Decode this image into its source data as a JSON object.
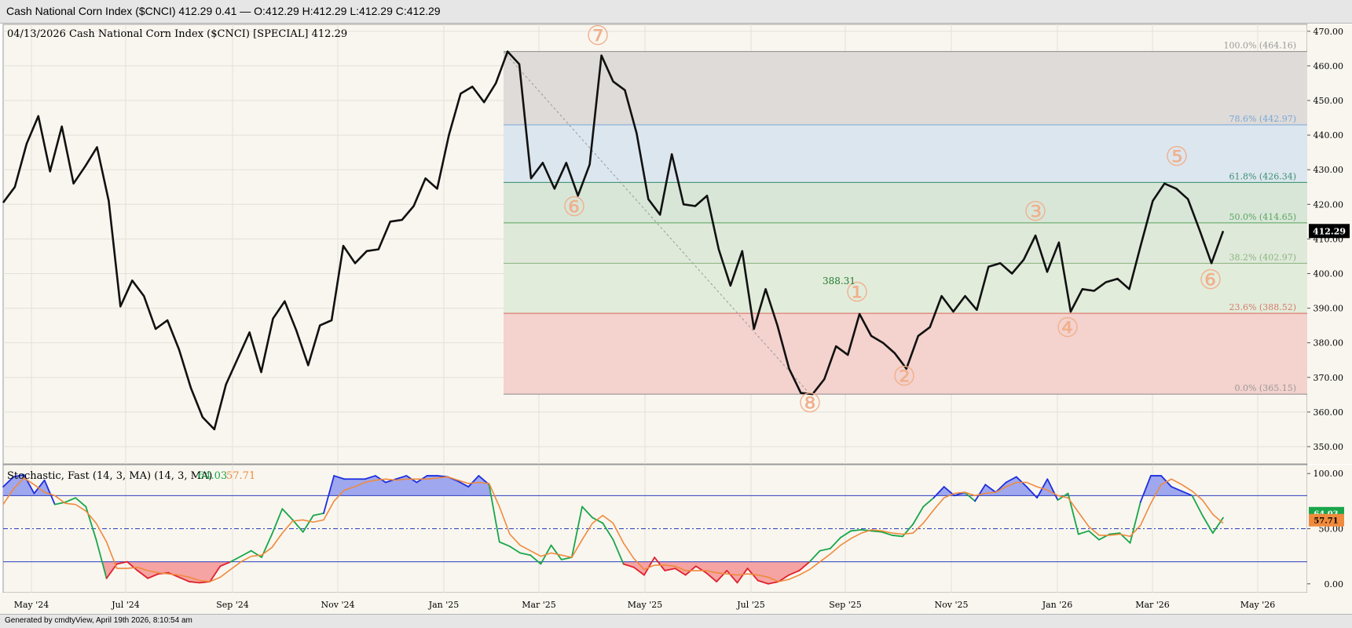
{
  "header": {
    "title": "Cash National Corn Index ($CNCI) 412.29 0.41 — O:412.29 H:412.29 L:412.29 C:412.29"
  },
  "footer": {
    "text": "Generated by cmdtyView, April 19th 2026, 8:10:54 am"
  },
  "colors": {
    "background": "#f9f6ef",
    "price_line": "#111111",
    "fib_top": "#dedbd8",
    "fib_786": "#dce6ee",
    "fib_618": "#d8e6d8",
    "fib_500": "#dfe9da",
    "fib_382": "#e2ecdb",
    "fib_236": "#f4d2cd",
    "wave_label": "#f0b08e",
    "stoch_k": "#19a64a",
    "stoch_d": "#f08a3c",
    "overbought_fill": "#9fa7ee",
    "oversold_fill": "#f5a3a3"
  },
  "chart_data": [
    {
      "type": "line",
      "title": "04/13/2026 Cash National Corn Index ($CNCI) [SPECIAL] 412.29",
      "ylim": [
        345,
        472
      ],
      "yticks": [
        "470.00",
        "460.00",
        "450.00",
        "440.00",
        "430.00",
        "420.00",
        "410.00",
        "400.00",
        "390.00",
        "380.00",
        "370.00",
        "360.00",
        "350.00"
      ],
      "xticks": [
        "May '24",
        "Jul '24",
        "Sep '24",
        "Nov '24",
        "Jan '25",
        "Mar '25",
        "May '25",
        "Jul '25",
        "Sep '25",
        "Nov '25",
        "Jan '26",
        "Mar '26",
        "May '26"
      ],
      "last_value_label": "412.29",
      "series": [
        {
          "values": [
            420.5,
            425,
            437.5,
            445.5,
            429.5,
            442.5,
            426,
            431,
            436.5,
            421,
            390.5,
            398,
            393.5,
            384,
            386.5,
            378,
            367,
            358.5,
            355,
            368,
            375.5,
            383,
            371.5,
            387,
            392,
            383.5,
            373.5,
            385,
            386.5,
            408,
            403,
            406.5,
            407,
            415,
            415.5,
            419.5,
            427.5,
            424.5,
            440,
            452,
            454,
            449.5,
            455,
            464.16,
            460.5,
            427.5,
            432,
            424.5,
            432,
            422.5,
            431.5,
            463,
            455.5,
            453,
            440.5,
            421.5,
            417,
            434.5,
            420,
            419.5,
            422.5,
            407,
            396.5,
            406.5,
            384,
            395.5,
            385,
            372.5,
            365.5,
            365.15,
            369.5,
            379,
            376.5,
            388.31,
            382,
            380,
            377,
            372.5,
            382,
            384.5,
            393.5,
            389,
            393.5,
            389.5,
            402,
            403,
            400,
            404,
            411,
            400.5,
            409,
            389,
            395.5,
            395,
            397.5,
            398.5,
            395.5,
            408.5,
            421,
            426,
            424.5,
            421.5,
            412.5,
            403,
            412.29
          ]
        }
      ],
      "fibonacci": [
        {
          "label": "100.0% (464.16)",
          "value": 464.16
        },
        {
          "label": "78.6% (442.97)",
          "value": 442.97
        },
        {
          "label": "61.8% (426.34)",
          "value": 426.34
        },
        {
          "label": "50.0% (414.65)",
          "value": 414.65
        },
        {
          "label": "38.2% (402.97)",
          "value": 402.97
        },
        {
          "label": "23.6% (388.52)",
          "value": 388.52
        },
        {
          "label": "0.0% (365.15)",
          "value": 365.15
        }
      ],
      "annotations": [
        {
          "text": "388.31",
          "value": 388.31
        },
        {
          "text": "⑦"
        },
        {
          "text": "⑥"
        },
        {
          "text": "⑧"
        },
        {
          "text": "①"
        },
        {
          "text": "②"
        },
        {
          "text": "③"
        },
        {
          "text": "④"
        },
        {
          "text": "⑤"
        },
        {
          "text": "⑥"
        }
      ]
    },
    {
      "type": "line",
      "title": "Stochastic, Fast (14, 3, MA)  (14, 3, MA)",
      "k_value_label": "64.03",
      "d_value_label": "57.71",
      "ylim": [
        -8,
        108
      ],
      "yticks": [
        "100.00",
        "50.00",
        "0.00"
      ],
      "overbought": 80,
      "midline": 50,
      "oversold": 20,
      "series": [
        {
          "name": "%K",
          "values": [
            88,
            97,
            99,
            82,
            94,
            72,
            74,
            78,
            70,
            40,
            5,
            18,
            20,
            12,
            5,
            9,
            10,
            6,
            2,
            1,
            2,
            16,
            20,
            25,
            30,
            24,
            45,
            68,
            58,
            47,
            62,
            64,
            98,
            95,
            95,
            95,
            98,
            92,
            95,
            98,
            92,
            98,
            98,
            97,
            93,
            88,
            98,
            90,
            38,
            34,
            28,
            26,
            18,
            35,
            22,
            24,
            70,
            60,
            55,
            40,
            18,
            15,
            8,
            24,
            12,
            14,
            8,
            16,
            10,
            2,
            12,
            1,
            14,
            3,
            0,
            2,
            8,
            12,
            20,
            30,
            32,
            42,
            48,
            49,
            48,
            47,
            44,
            43,
            54,
            70,
            78,
            88,
            80,
            83,
            75,
            90,
            83,
            92,
            97,
            88,
            78,
            95,
            76,
            82,
            45,
            48,
            40,
            45,
            46,
            37,
            74,
            98,
            98,
            88,
            84,
            80,
            62,
            46,
            60
          ],
          "colors_note": "k line"
        },
        {
          "name": "%D",
          "values": [
            72,
            86,
            96,
            90,
            83,
            80,
            73,
            72,
            66,
            55,
            38,
            14,
            14,
            15,
            12,
            10,
            9,
            8,
            6,
            3,
            2,
            6,
            13,
            20,
            25,
            26,
            33,
            46,
            57,
            58,
            56,
            58,
            75,
            85,
            88,
            92,
            94,
            95,
            94,
            95,
            95,
            95,
            96,
            97,
            94,
            91,
            92,
            91,
            70,
            45,
            35,
            30,
            25,
            28,
            26,
            24,
            40,
            55,
            62,
            55,
            37,
            23,
            13,
            17,
            17,
            16,
            12,
            12,
            12,
            10,
            9,
            8,
            9,
            8,
            6,
            2,
            4,
            8,
            13,
            20,
            27,
            35,
            41,
            46,
            49,
            48,
            46,
            45,
            46,
            55,
            67,
            78,
            82,
            83,
            80,
            82,
            83,
            88,
            92,
            92,
            88,
            85,
            80,
            78,
            65,
            52,
            44,
            44,
            45,
            43,
            53,
            73,
            90,
            95,
            90,
            84,
            76,
            63,
            55
          ],
          "colors_note": "d line"
        }
      ]
    }
  ]
}
